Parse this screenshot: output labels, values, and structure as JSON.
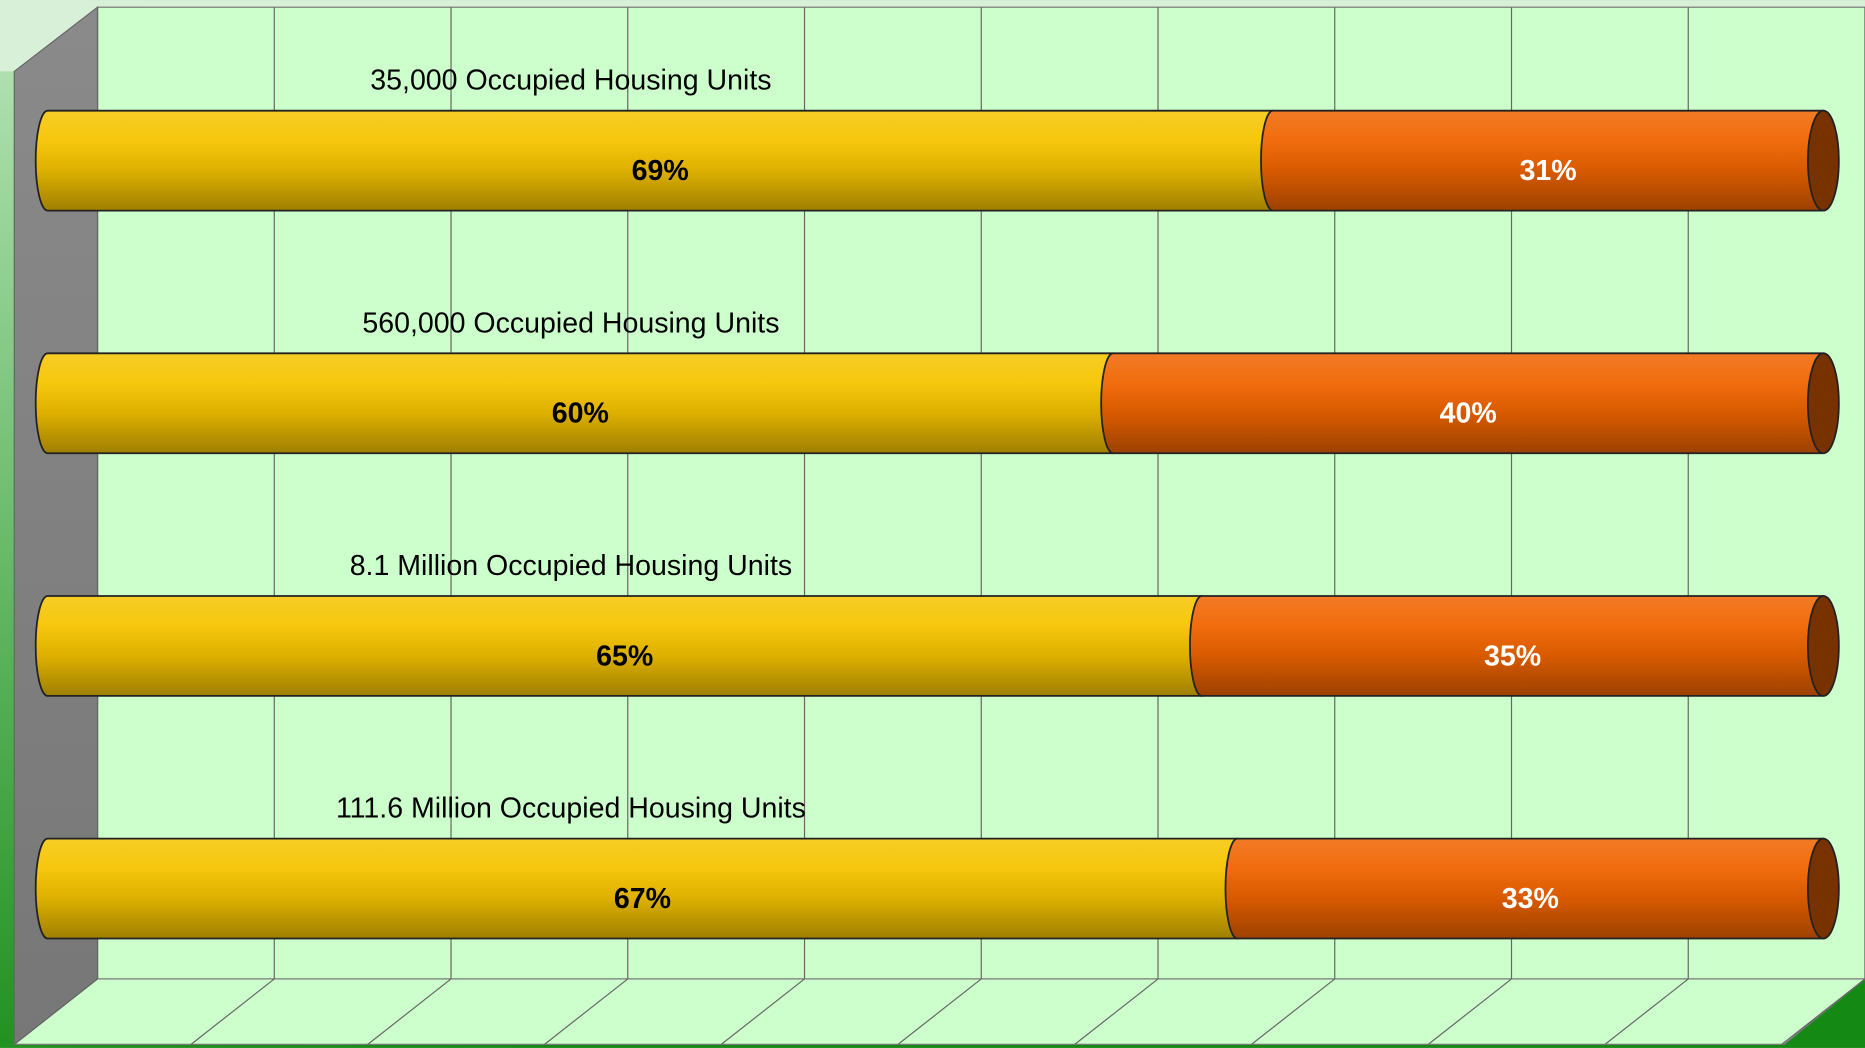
{
  "chart_data": {
    "type": "bar",
    "orientation": "horizontal",
    "stacked": true,
    "categories": [
      "35,000 Occupied Housing Units",
      "560,000 Occupied Housing Units",
      "8.1 Million Occupied Housing Units",
      "111.6 Million Occupied Housing Units"
    ],
    "series": [
      {
        "color": "#f5c400",
        "label_color": "#000000",
        "values": [
          69,
          60,
          65,
          67
        ],
        "value_labels": [
          "69%",
          "60%",
          "65%",
          "67%"
        ]
      },
      {
        "color": "#f06400",
        "label_color": "#ffffff",
        "values": [
          31,
          40,
          35,
          33
        ],
        "value_labels": [
          "31%",
          "40%",
          "35%",
          "33%"
        ]
      }
    ],
    "xlim": [
      0,
      100
    ],
    "xticks": [
      0,
      10,
      20,
      30,
      40,
      50,
      60,
      70,
      80,
      90,
      100
    ],
    "grid": true
  }
}
